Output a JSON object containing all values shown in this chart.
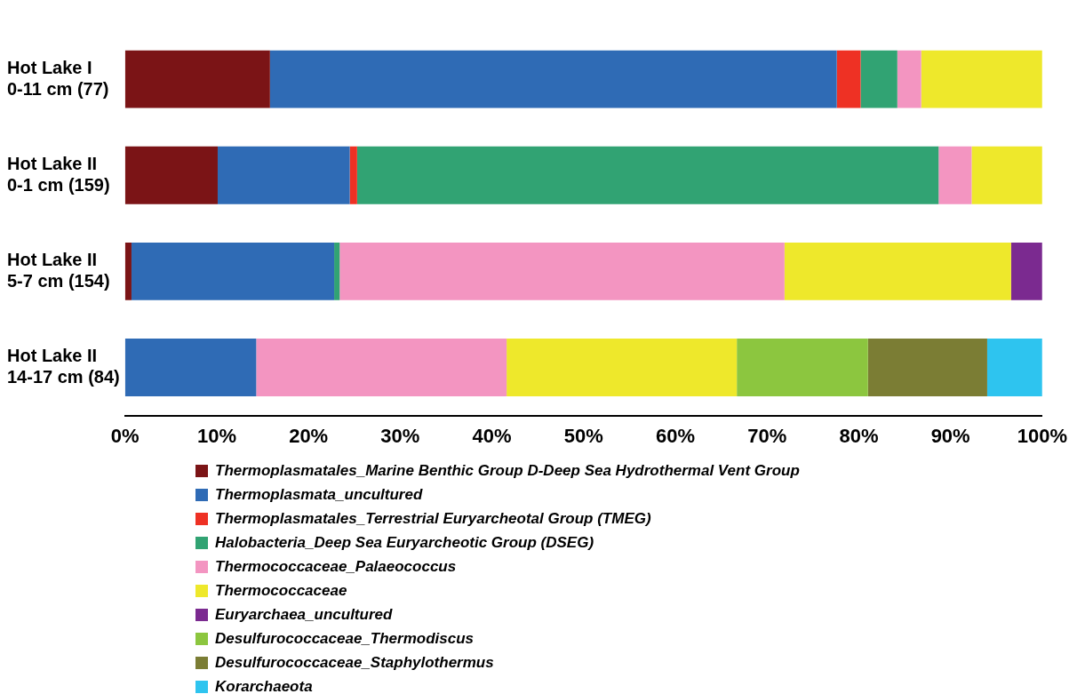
{
  "chart_data": {
    "type": "bar",
    "orientation": "horizontal",
    "stacked": true,
    "categories": [
      "Hot Lake I\n0-11 cm (77)",
      "Hot Lake II\n0-1 cm (159)",
      "Hot Lake II\n5-7 cm (154)",
      "Hot Lake II\n14-17 cm (84)"
    ],
    "xlim": [
      0,
      100
    ],
    "xticks": [
      {
        "value": 0,
        "label": "0%"
      },
      {
        "value": 10,
        "label": "10%"
      },
      {
        "value": 20,
        "label": "20%"
      },
      {
        "value": 30,
        "label": "30%"
      },
      {
        "value": 40,
        "label": "40%"
      },
      {
        "value": 50,
        "label": "50%"
      },
      {
        "value": 60,
        "label": "60%"
      },
      {
        "value": 70,
        "label": "70%"
      },
      {
        "value": 80,
        "label": "80%"
      },
      {
        "value": 90,
        "label": "90%"
      },
      {
        "value": 100,
        "label": "100%"
      }
    ],
    "grid": false,
    "legend": "bottom",
    "series": [
      {
        "name": "Thermoplasmatales_Marine Benthic Group D-Deep Sea Hydrothermal Vent Group",
        "color": "#7b1416",
        "values": [
          15.8,
          10.1,
          0.7,
          null
        ]
      },
      {
        "name": "Thermoplasmata_uncultured",
        "color": "#2f6bb5",
        "values": [
          61.8,
          14.4,
          22.1,
          14.3
        ]
      },
      {
        "name": "Thermoplasmatales_Terrestrial Euryarcheotal Group (TMEG)",
        "color": "#ee3124",
        "values": [
          2.6,
          0.8,
          null,
          null
        ]
      },
      {
        "name": "Halobacteria_Deep Sea Euryarcheotic Group (DSEG)",
        "color": "#31a373",
        "values": [
          4.0,
          63.4,
          0.6,
          null
        ]
      },
      {
        "name": "Thermococcaceae_Palaeococcus",
        "color": "#f395c1",
        "values": [
          2.6,
          3.6,
          48.5,
          27.3
        ]
      },
      {
        "name": "Thermococcaceae",
        "color": "#eee82b",
        "values": [
          13.2,
          7.7,
          24.7,
          25.1
        ]
      },
      {
        "name": "Euryarchaea_uncultured",
        "color": "#7b2a90",
        "values": [
          null,
          null,
          3.4,
          null
        ]
      },
      {
        "name": "Desulfurococcaceae_Thermodiscus",
        "color": "#8cc63f",
        "values": [
          null,
          null,
          null,
          14.3
        ]
      },
      {
        "name": "Desulfurococcaceae_Staphylothermus",
        "color": "#7b7d34",
        "values": [
          null,
          null,
          null,
          13.0
        ]
      },
      {
        "name": "Korarchaeota",
        "color": "#2ec4ef",
        "values": [
          null,
          null,
          null,
          6.0
        ]
      }
    ]
  }
}
